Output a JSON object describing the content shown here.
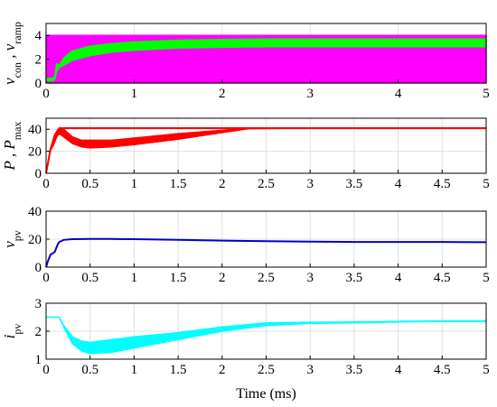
{
  "chart_data": [
    {
      "type": "line",
      "ylabel_parts": [
        "v",
        "con",
        " , ",
        "v",
        "ramp"
      ],
      "xlim": [
        0,
        5
      ],
      "ylim": [
        0,
        5
      ],
      "xticks": [
        0,
        1,
        2,
        3,
        4,
        5
      ],
      "xtick_labels": [
        "0",
        "1",
        "2",
        "3",
        "4",
        "5"
      ],
      "yticks": [
        0,
        2,
        4
      ],
      "ytick_labels": [
        "0",
        "2",
        "4"
      ],
      "grid": true,
      "series": [
        {
          "color": "#ff00ff",
          "band": true,
          "x": [
            0,
            5
          ],
          "lo": [
            0,
            0
          ],
          "hi": [
            4,
            4
          ]
        },
        {
          "color": "#00ff00",
          "band": true,
          "x": [
            0,
            0.05,
            0.08,
            0.1,
            0.12,
            0.15,
            0.2,
            0.3,
            0.5,
            0.75,
            1,
            1.5,
            2,
            2.5,
            3,
            4,
            5
          ],
          "lo": [
            0.2,
            0.2,
            0.2,
            0.3,
            1.0,
            1.3,
            1.5,
            1.9,
            2.3,
            2.6,
            2.75,
            2.95,
            3.0,
            3.05,
            3.05,
            3.05,
            3.05
          ],
          "hi": [
            0.4,
            0.4,
            0.4,
            0.6,
            1.6,
            1.5,
            2.1,
            2.7,
            3.1,
            3.3,
            3.45,
            3.6,
            3.65,
            3.7,
            3.7,
            3.7,
            3.7
          ]
        }
      ]
    },
    {
      "type": "line",
      "ylabel_parts": [
        "P",
        "",
        " , ",
        "P",
        "max"
      ],
      "xlim": [
        0,
        5
      ],
      "ylim": [
        0,
        50
      ],
      "xticks": [
        0,
        0.5,
        1,
        1.5,
        2,
        2.5,
        3,
        3.5,
        4,
        4.5,
        5
      ],
      "xtick_labels": [
        "0",
        "0.5",
        "1",
        "1.5",
        "2",
        "2.5",
        "3",
        "3.5",
        "4",
        "4.5",
        "5"
      ],
      "yticks": [
        0,
        20,
        40
      ],
      "ytick_labels": [
        "0",
        "20",
        "40"
      ],
      "grid": true,
      "series": [
        {
          "color": "#ff0000",
          "band": false,
          "x": [
            0,
            0.05,
            0.1,
            0.15,
            0.2,
            5
          ],
          "y": [
            0,
            22,
            35,
            41,
            41,
            41
          ]
        },
        {
          "color": "#ff0000",
          "band": true,
          "x": [
            0,
            0.05,
            0.08,
            0.12,
            0.15,
            0.2,
            0.3,
            0.4,
            0.5,
            0.75,
            1,
            1.5,
            2,
            2.3,
            3,
            4,
            5
          ],
          "lo": [
            0,
            21,
            25,
            33,
            36,
            33,
            27,
            24,
            23,
            24,
            26,
            31,
            37,
            40.5,
            41,
            41,
            41
          ],
          "hi": [
            0,
            23,
            27,
            38,
            41,
            40,
            33,
            30,
            30,
            30,
            32,
            36,
            39,
            41,
            41,
            41,
            41
          ]
        }
      ]
    },
    {
      "type": "line",
      "ylabel_parts": [
        "v",
        "pv",
        "",
        "",
        ""
      ],
      "xlim": [
        0,
        5
      ],
      "ylim": [
        0,
        40
      ],
      "xticks": [
        0,
        0.5,
        1,
        1.5,
        2,
        2.5,
        3,
        3.5,
        4,
        4.5,
        5
      ],
      "xtick_labels": [
        "0",
        "0.5",
        "1",
        "1.5",
        "2",
        "2.5",
        "3",
        "3.5",
        "4",
        "4.5",
        "5"
      ],
      "yticks": [
        0,
        20,
        40
      ],
      "ytick_labels": [
        "0",
        "20",
        "40"
      ],
      "grid": true,
      "series": [
        {
          "color": "#0000cc",
          "band": false,
          "x": [
            0,
            0.02,
            0.05,
            0.08,
            0.1,
            0.13,
            0.15,
            0.2,
            0.3,
            0.5,
            0.75,
            1,
            1.5,
            2,
            2.5,
            3,
            3.5,
            4,
            4.5,
            5
          ],
          "y": [
            0,
            4,
            9,
            10,
            11,
            16,
            18,
            19.5,
            20,
            20.2,
            20.1,
            20,
            19.5,
            19,
            18.5,
            18.2,
            18,
            18,
            18,
            17.8
          ]
        }
      ]
    },
    {
      "type": "line",
      "ylabel_parts": [
        "i",
        "pv",
        "",
        "",
        ""
      ],
      "xlim": [
        0,
        5
      ],
      "ylim": [
        1,
        3
      ],
      "xticks": [
        0,
        0.5,
        1,
        1.5,
        2,
        2.5,
        3,
        3.5,
        4,
        4.5,
        5
      ],
      "xtick_labels": [
        "0",
        "0.5",
        "1",
        "1.5",
        "2",
        "2.5",
        "3",
        "3.5",
        "4",
        "4.5",
        "5"
      ],
      "yticks": [
        1,
        2,
        3
      ],
      "ytick_labels": [
        "1",
        "2",
        "3"
      ],
      "grid": true,
      "xlabel": "Time (ms)",
      "series": [
        {
          "color": "#00ffff",
          "band": true,
          "x": [
            0,
            0.15,
            0.2,
            0.3,
            0.4,
            0.5,
            0.75,
            1,
            1.5,
            2,
            2.5,
            3,
            3.5,
            4,
            4.5,
            5
          ],
          "lo": [
            2.5,
            2.5,
            2.15,
            1.55,
            1.3,
            1.2,
            1.25,
            1.4,
            1.7,
            2.0,
            2.2,
            2.28,
            2.3,
            2.33,
            2.35,
            2.35
          ],
          "hi": [
            2.5,
            2.5,
            2.2,
            1.8,
            1.65,
            1.6,
            1.7,
            1.8,
            1.95,
            2.15,
            2.3,
            2.32,
            2.33,
            2.35,
            2.37,
            2.37
          ]
        }
      ]
    }
  ]
}
